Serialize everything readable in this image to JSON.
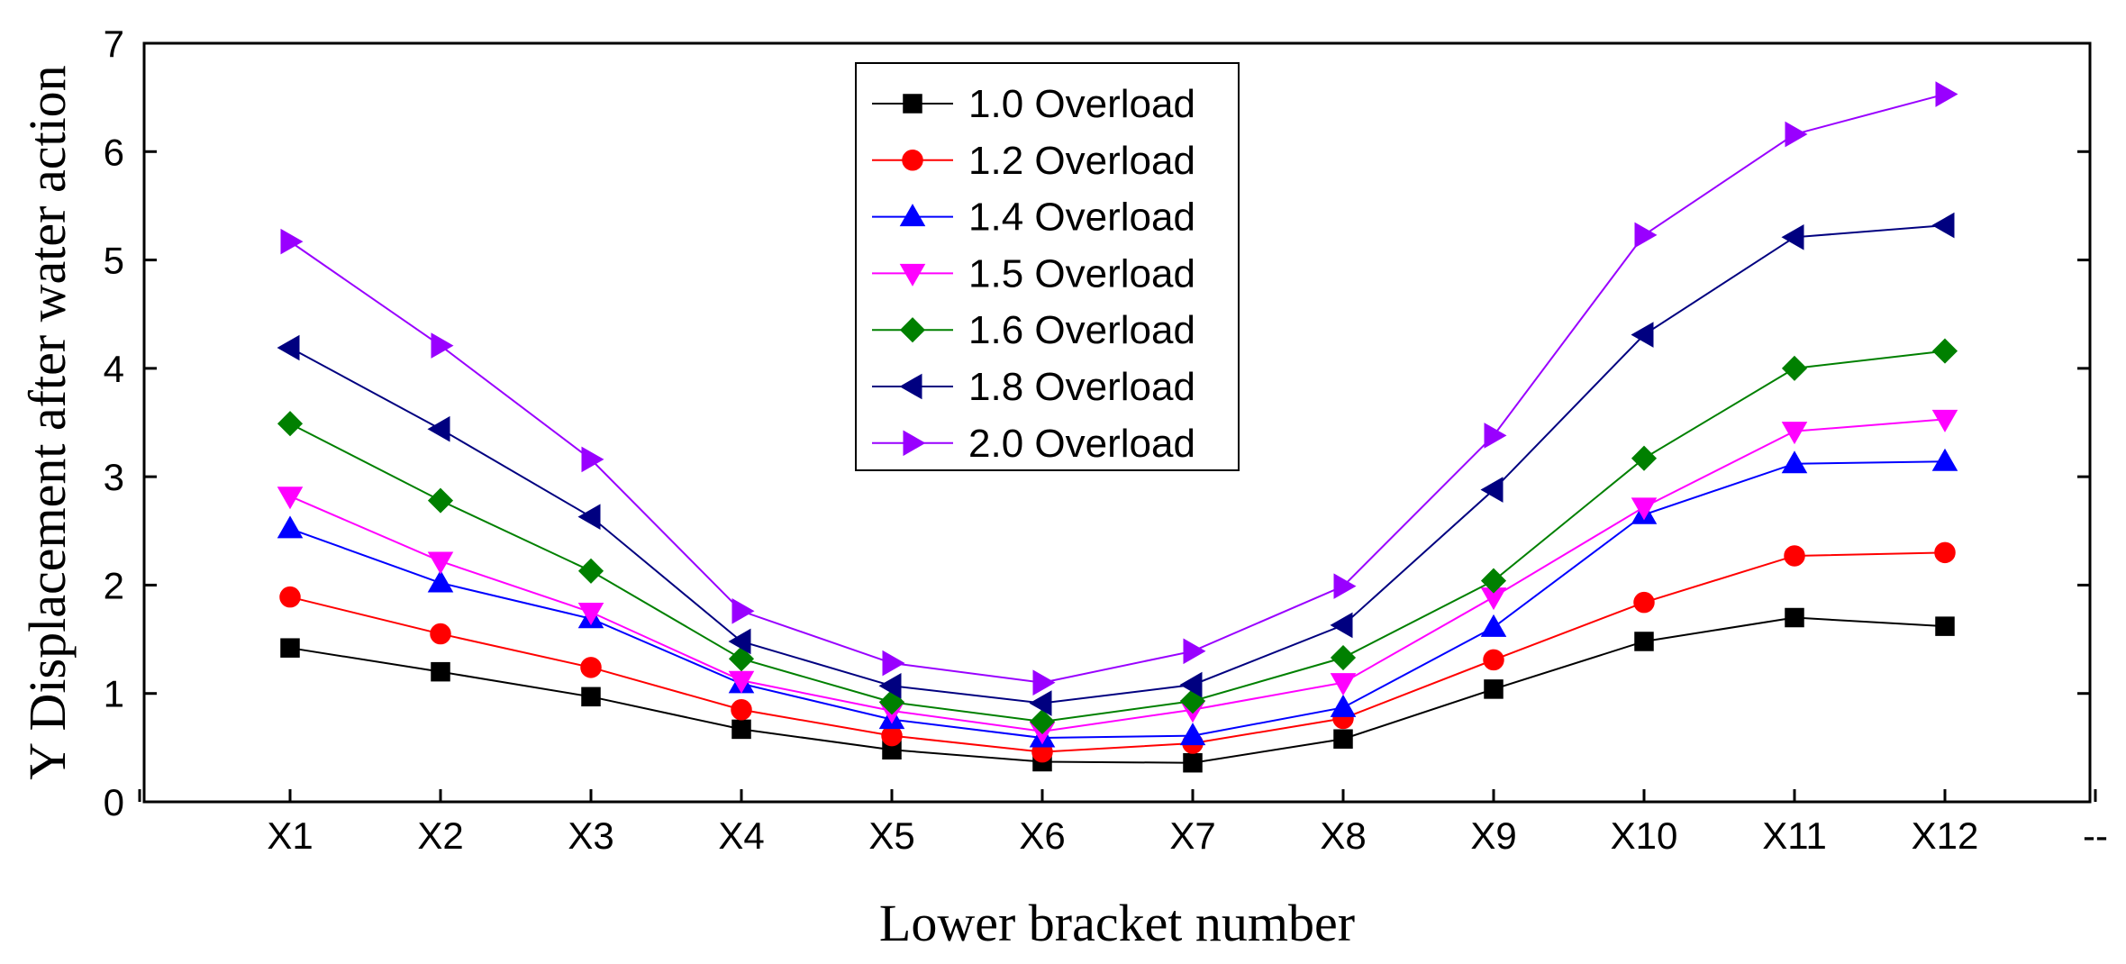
{
  "chart_data": {
    "type": "line",
    "title": "",
    "xlabel": "Lower bracket number",
    "ylabel": "Y Displacement after water action",
    "categories": [
      "X1",
      "X2",
      "X3",
      "X4",
      "X5",
      "X6",
      "X7",
      "X8",
      "X9",
      "X10",
      "X11",
      "X12"
    ],
    "extra_tick_label": "--",
    "ylim": [
      0,
      7
    ],
    "yticks": [
      0,
      1,
      2,
      3,
      4,
      5,
      6,
      7
    ],
    "grid": false,
    "legend_position": "top-center",
    "series": [
      {
        "name": "1.0 Overload",
        "marker": "square",
        "color": "#000000",
        "values": [
          1.42,
          1.2,
          0.97,
          0.67,
          0.48,
          0.37,
          0.36,
          0.58,
          1.04,
          1.48,
          1.7,
          1.62
        ]
      },
      {
        "name": "1.2 Overload",
        "marker": "circle",
        "color": "#ff0000",
        "values": [
          1.89,
          1.55,
          1.24,
          0.85,
          0.61,
          0.46,
          0.54,
          0.77,
          1.31,
          1.84,
          2.27,
          2.3
        ]
      },
      {
        "name": "1.4 Overload",
        "marker": "triangle-up",
        "color": "#0000ff",
        "values": [
          2.52,
          2.02,
          1.69,
          1.09,
          0.76,
          0.59,
          0.61,
          0.87,
          1.61,
          2.65,
          3.12,
          3.14
        ]
      },
      {
        "name": "1.5 Overload",
        "marker": "triangle-down",
        "color": "#ff00ff",
        "values": [
          2.82,
          2.22,
          1.75,
          1.12,
          0.84,
          0.65,
          0.85,
          1.1,
          1.89,
          2.72,
          3.42,
          3.53
        ]
      },
      {
        "name": "1.6 Overload",
        "marker": "diamond",
        "color": "#008000",
        "values": [
          3.49,
          2.78,
          2.13,
          1.32,
          0.92,
          0.74,
          0.93,
          1.33,
          2.04,
          3.17,
          4.0,
          4.16
        ]
      },
      {
        "name": "1.8 Overload",
        "marker": "triangle-left",
        "color": "#000080",
        "values": [
          4.19,
          3.44,
          2.63,
          1.48,
          1.07,
          0.91,
          1.08,
          1.63,
          2.88,
          4.31,
          5.21,
          5.32
        ]
      },
      {
        "name": "2.0 Overload",
        "marker": "triangle-right",
        "color": "#9900ff",
        "values": [
          5.17,
          4.21,
          3.16,
          1.76,
          1.28,
          1.1,
          1.39,
          1.99,
          3.38,
          5.23,
          6.16,
          6.53
        ]
      }
    ]
  }
}
